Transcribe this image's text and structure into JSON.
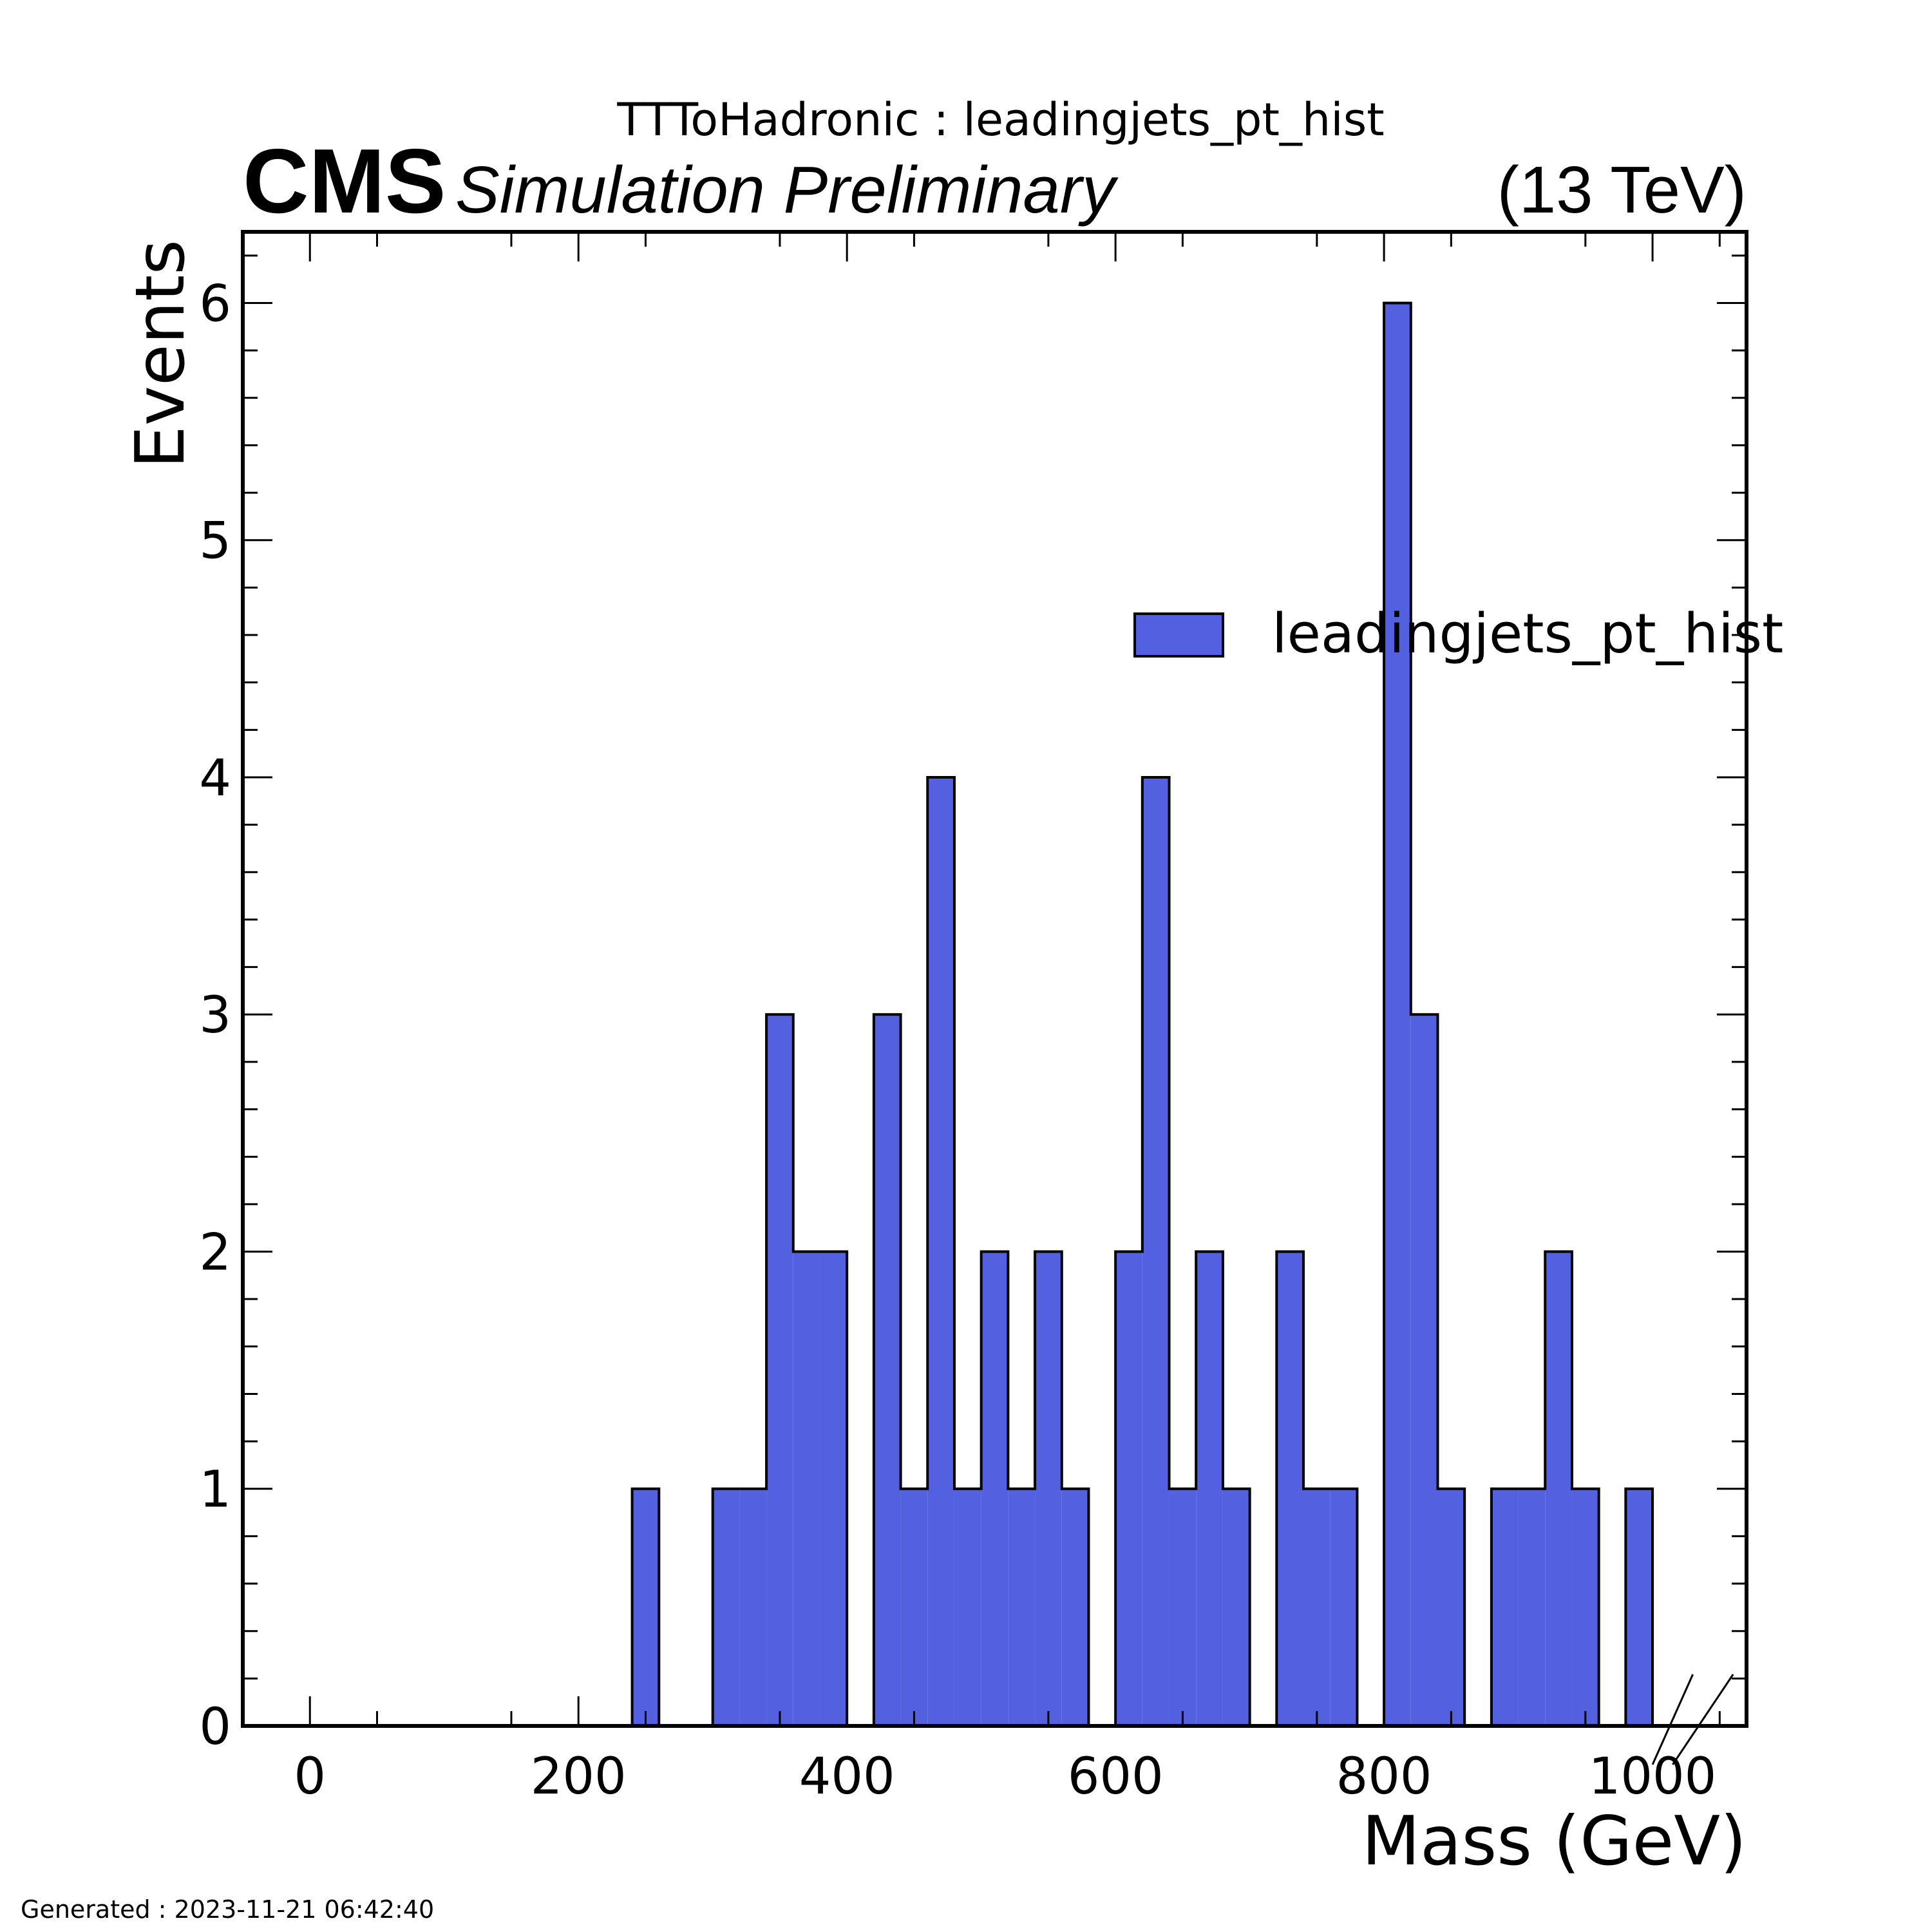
{
  "chart_data": {
    "type": "bar",
    "title": "TTToHadronic : leadingjets_pt_hist",
    "experiment_label": "CMS",
    "experiment_sublabel": "Simulation Preliminary",
    "energy_label": "(13 TeV)",
    "xlabel": "Mass (GeV)",
    "ylabel": "Events",
    "xlim": [
      -50,
      1070
    ],
    "ylim": [
      0,
      6.3
    ],
    "x_ticks": [
      0,
      200,
      400,
      600,
      800,
      1000
    ],
    "x_tick_labels": [
      "0",
      "200",
      "400",
      "600",
      "800",
      "1000"
    ],
    "y_ticks": [
      0,
      1,
      2,
      3,
      4,
      5,
      6
    ],
    "y_tick_labels": [
      "0",
      "1",
      "2",
      "3",
      "4",
      "5",
      "6"
    ],
    "bin_width": 20,
    "bin_edges_start": 0,
    "series": [
      {
        "name": "leadingjets_pt_hist",
        "values": [
          0,
          0,
          0,
          0,
          0,
          0,
          0,
          0,
          0,
          0,
          0,
          0,
          1,
          0,
          0,
          1,
          1,
          3,
          2,
          2,
          0,
          3,
          1,
          4,
          1,
          2,
          1,
          2,
          1,
          0,
          2,
          4,
          1,
          2,
          1,
          0,
          2,
          1,
          1,
          0,
          6,
          3,
          1,
          0,
          1,
          1,
          2,
          1,
          0,
          1
        ],
        "color": "#5361e1"
      }
    ],
    "grid": false,
    "legend_position": "upper-right",
    "overflow_marker": "//",
    "footer": "Generated : 2023-11-21 06:42:40"
  }
}
